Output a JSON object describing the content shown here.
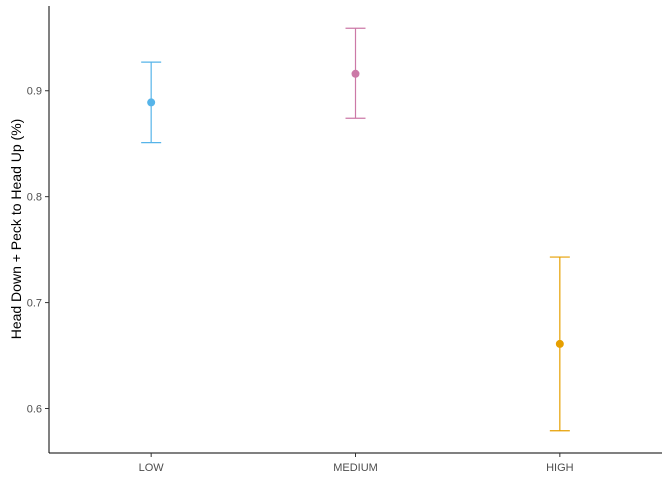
{
  "chart_data": {
    "type": "scatter",
    "title": "",
    "xlabel": "",
    "ylabel": "Head Down + Peck to Head Up  (%)",
    "categories": [
      "LOW",
      "MEDIUM",
      "HIGH"
    ],
    "points": [
      {
        "category": "LOW",
        "value": 0.889,
        "lower": 0.851,
        "upper": 0.927,
        "color": "#56B4E9"
      },
      {
        "category": "MEDIUM",
        "value": 0.916,
        "lower": 0.874,
        "upper": 0.959,
        "color": "#CC79A7"
      },
      {
        "category": "HIGH",
        "value": 0.661,
        "lower": 0.579,
        "upper": 0.743,
        "color": "#E69F00"
      }
    ],
    "yticks": [
      0.6,
      0.7,
      0.8,
      0.9
    ],
    "ylim": [
      0.558,
      0.98
    ],
    "grid": false,
    "legend": "none"
  }
}
